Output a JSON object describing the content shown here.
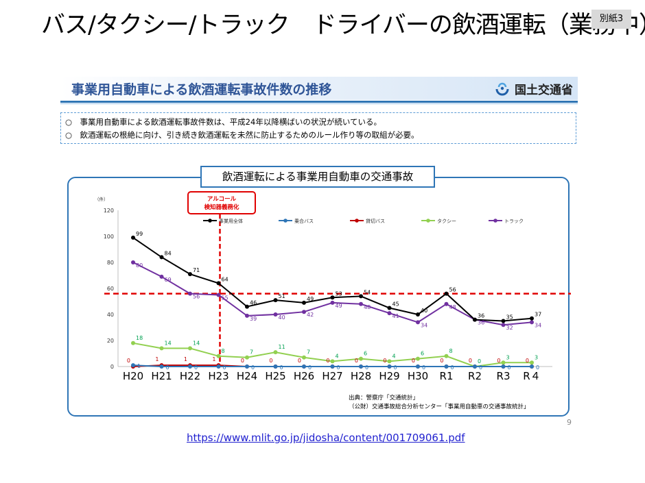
{
  "slide": {
    "title": "バス/タクシー/トラック　ドライバーの飲酒運転（業務中）",
    "badge": "別紙3",
    "page_number": "9",
    "url": "https://www.mlit.go.jp/jidosha/content/001709061.pdf"
  },
  "banner": {
    "title": "事業用自動車による飲酒運転事故件数の推移",
    "ministry": "国土交通省"
  },
  "summary": [
    "○　事業用自動車による飲酒運転事故件数は、平成24年以降横ばいの状況が続いている。",
    "○　飲酒運転の根絶に向け、引き続き飲酒運転を未然に防止するためのルール作り等の取組が必要。"
  ],
  "source": {
    "line1": "出典：警察庁「交通統計」",
    "line2": "（公財）交通事故総合分析センター「事業用自動車の交通事故統計」"
  },
  "chart_data": {
    "type": "line",
    "title": "飲酒運転による事業用自動車の交通事故",
    "ylabel": "（件）",
    "ylim": [
      0,
      120
    ],
    "yticks": [
      0,
      20,
      40,
      60,
      80,
      100,
      120
    ],
    "categories": [
      "H20",
      "H21",
      "H22",
      "H23",
      "H24",
      "H25",
      "H26",
      "H27",
      "H28",
      "H29",
      "H30",
      "R1",
      "R2",
      "R3",
      "R４"
    ],
    "series": [
      {
        "name": "事業用全体",
        "color": "#000000",
        "label_color": "#000000",
        "values": [
          99,
          84,
          71,
          64,
          46,
          51,
          49,
          53,
          54,
          45,
          40,
          56,
          36,
          35,
          37
        ]
      },
      {
        "name": "乗合バス",
        "color": "#2e75b6",
        "label_color": "#2e75b6",
        "values": [
          1,
          0,
          0,
          0,
          0,
          0,
          0,
          0,
          0,
          0,
          0,
          0,
          0,
          0,
          0
        ]
      },
      {
        "name": "貸切バス",
        "color": "#c00000",
        "label_color": "#c00000",
        "values": [
          0,
          1,
          1,
          1,
          0,
          0,
          0,
          0,
          0,
          0,
          0,
          0,
          0,
          0,
          0
        ]
      },
      {
        "name": "タクシー",
        "color": "#92d050",
        "label_color": "#00a050",
        "values": [
          18,
          14,
          14,
          8,
          7,
          11,
          7,
          4,
          6,
          4,
          6,
          8,
          0,
          3,
          3
        ]
      },
      {
        "name": "トラック",
        "color": "#7030a0",
        "label_color": "#7030a0",
        "values": [
          80,
          69,
          56,
          55,
          39,
          40,
          42,
          49,
          48,
          41,
          34,
          48,
          36,
          32,
          34
        ]
      }
    ],
    "reference_line": {
      "axis": "y",
      "value": 56,
      "color": "#e00000",
      "style": "dashed"
    },
    "event": {
      "category": "H23",
      "label_line1": "アルコール",
      "label_line2": "検知器義務化",
      "color": "#e00000"
    },
    "legend": "top"
  }
}
